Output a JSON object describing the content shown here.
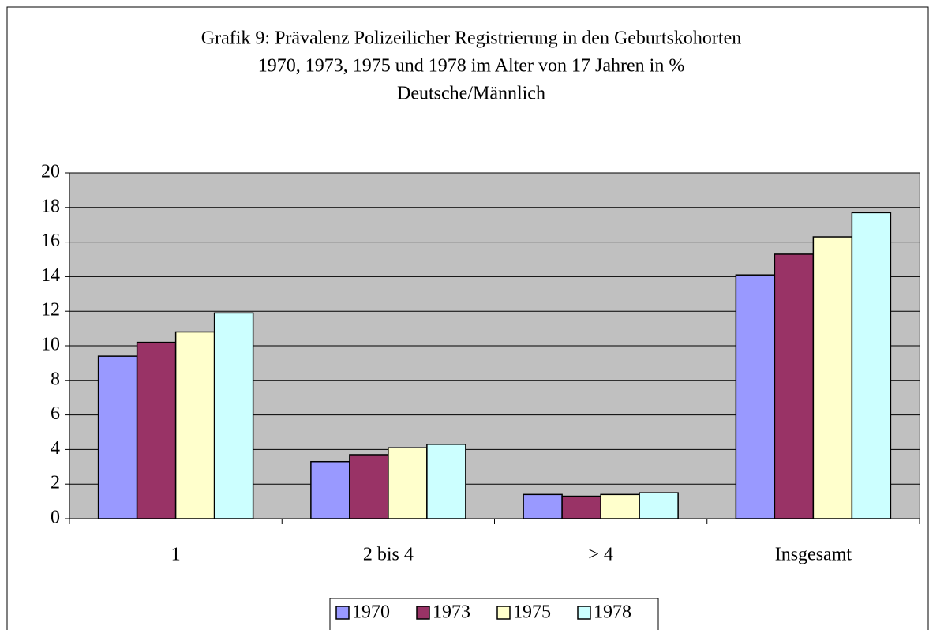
{
  "chart_data": {
    "type": "bar",
    "title": [
      "Grafik 9: Prävalenz Polizeilicher Registrierung in den Geburtskohorten",
      "1970, 1973, 1975 und 1978 im Alter von 17 Jahren in %",
      "Deutsche/Männlich"
    ],
    "categories": [
      "1",
      "2 bis 4",
      "> 4",
      "Insgesamt"
    ],
    "series": [
      {
        "name": "1970",
        "color": "#9999ff",
        "values": [
          9.4,
          3.3,
          1.4,
          14.1
        ]
      },
      {
        "name": "1973",
        "color": "#993366",
        "values": [
          10.2,
          3.7,
          1.3,
          15.3
        ]
      },
      {
        "name": "1975",
        "color": "#ffffcc",
        "values": [
          10.8,
          4.1,
          1.4,
          16.3
        ]
      },
      {
        "name": "1978",
        "color": "#ccffff",
        "values": [
          11.9,
          4.3,
          1.5,
          17.7
        ]
      }
    ],
    "ylim": [
      0,
      20
    ],
    "yticks": [
      0,
      2,
      4,
      6,
      8,
      10,
      12,
      14,
      16,
      18,
      20
    ],
    "grid": true,
    "legend": "bottom"
  }
}
